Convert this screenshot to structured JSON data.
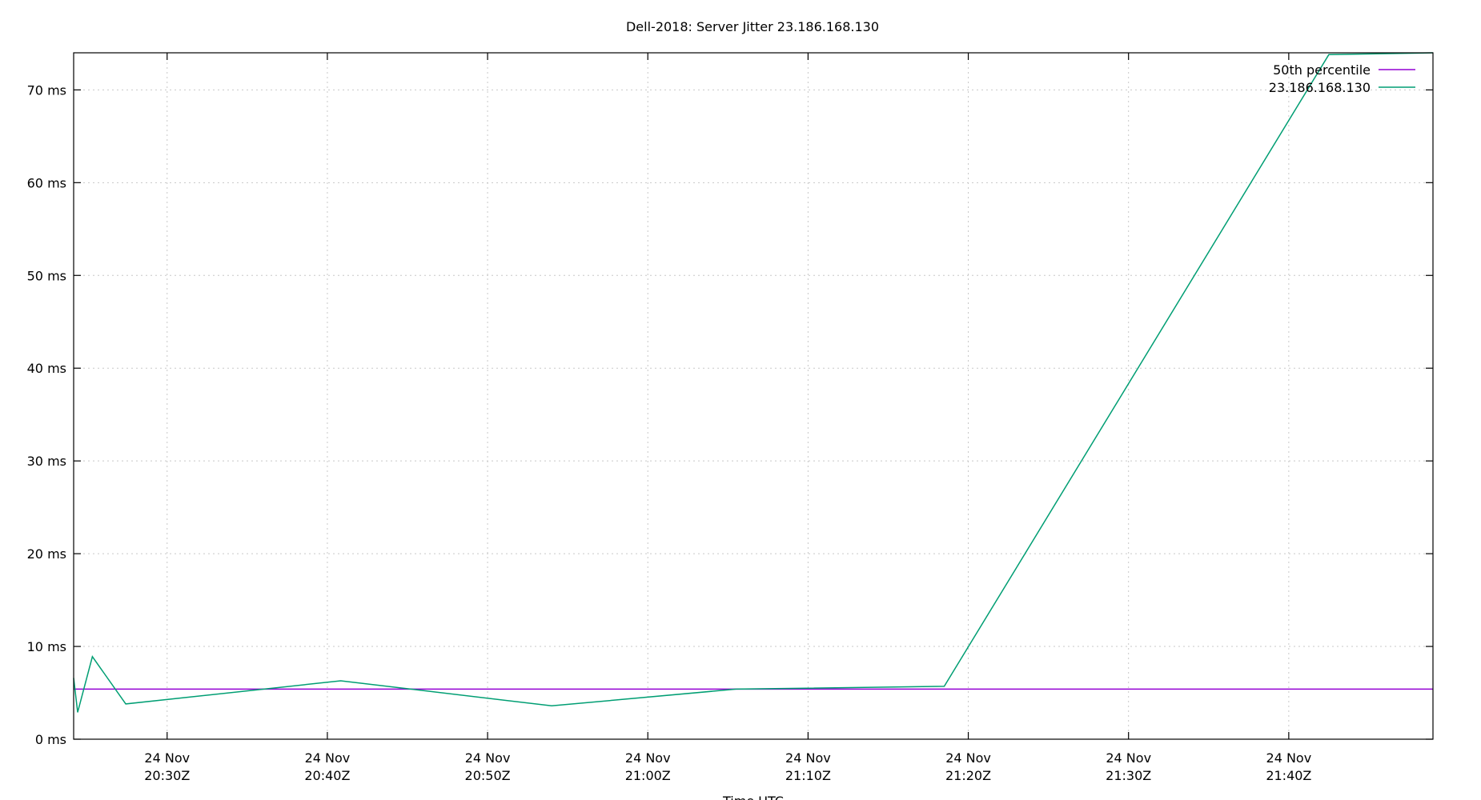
{
  "chart_data": {
    "type": "line",
    "title": "Dell-2018: Server Jitter 23.186.168.130",
    "xlabel": "Time UTC",
    "ylabel": "",
    "x_range": [
      "2024-11-24T20:24:10Z",
      "2024-11-24T21:49:00Z"
    ],
    "ylim": [
      0,
      74
    ],
    "y_unit": "ms",
    "y_ticks": [
      0,
      10,
      20,
      30,
      40,
      50,
      60,
      70
    ],
    "y_tick_labels": [
      "0 ms",
      "10 ms",
      "20 ms",
      "30 ms",
      "40 ms",
      "50 ms",
      "60 ms",
      "70 ms"
    ],
    "x_ticks": [
      {
        "t": "2024-11-24T20:30:00Z",
        "label_date": "24 Nov",
        "label_time": "20:30Z"
      },
      {
        "t": "2024-11-24T20:40:00Z",
        "label_date": "24 Nov",
        "label_time": "20:40Z"
      },
      {
        "t": "2024-11-24T20:50:00Z",
        "label_date": "24 Nov",
        "label_time": "20:50Z"
      },
      {
        "t": "2024-11-24T21:00:00Z",
        "label_date": "24 Nov",
        "label_time": "21:00Z"
      },
      {
        "t": "2024-11-24T21:10:00Z",
        "label_date": "24 Nov",
        "label_time": "21:10Z"
      },
      {
        "t": "2024-11-24T21:20:00Z",
        "label_date": "24 Nov",
        "label_time": "21:20Z"
      },
      {
        "t": "2024-11-24T21:30:00Z",
        "label_date": "24 Nov",
        "label_time": "21:30Z"
      },
      {
        "t": "2024-11-24T21:40:00Z",
        "label_date": "24 Nov",
        "label_time": "21:40Z"
      }
    ],
    "grid": true,
    "legend_position": "top-right",
    "series": [
      {
        "name": "50th percentile",
        "color": "#9400d3",
        "points": [
          {
            "t": "2024-11-24T20:24:10Z",
            "y": 5.4
          },
          {
            "t": "2024-11-24T21:49:00Z",
            "y": 5.4
          }
        ]
      },
      {
        "name": "23.186.168.130",
        "color": "#009e73",
        "points": [
          {
            "t": "2024-11-24T20:24:10Z",
            "y": 6.6
          },
          {
            "t": "2024-11-24T20:24:25Z",
            "y": 2.9
          },
          {
            "t": "2024-11-24T20:25:20Z",
            "y": 8.9
          },
          {
            "t": "2024-11-24T20:27:25Z",
            "y": 3.8
          },
          {
            "t": "2024-11-24T20:40:50Z",
            "y": 6.3
          },
          {
            "t": "2024-11-24T20:54:00Z",
            "y": 3.6
          },
          {
            "t": "2024-11-24T21:05:30Z",
            "y": 5.4
          },
          {
            "t": "2024-11-24T21:18:30Z",
            "y": 5.7
          },
          {
            "t": "2024-11-24T21:42:30Z",
            "y": 73.8
          },
          {
            "t": "2024-11-24T21:49:00Z",
            "y": 74.0
          }
        ]
      }
    ]
  }
}
